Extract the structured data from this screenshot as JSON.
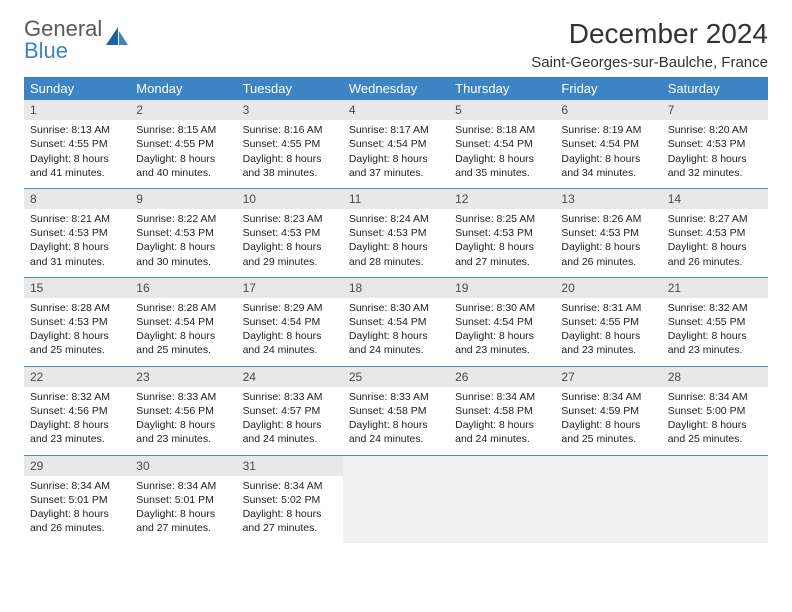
{
  "logo": {
    "line1": "General",
    "line2": "Blue"
  },
  "title": "December 2024",
  "location": "Saint-Georges-sur-Baulche, France",
  "colors": {
    "header_bg": "#3d84c4",
    "header_text": "#ffffff",
    "daynum_bg": "#e8e8e8",
    "row_border": "#5b8ab5",
    "text": "#222222",
    "logo_gray": "#5a5a5a",
    "logo_blue": "#3d84c4"
  },
  "day_headers": [
    "Sunday",
    "Monday",
    "Tuesday",
    "Wednesday",
    "Thursday",
    "Friday",
    "Saturday"
  ],
  "weeks": [
    [
      {
        "n": "1",
        "sr": "Sunrise: 8:13 AM",
        "ss": "Sunset: 4:55 PM",
        "d1": "Daylight: 8 hours",
        "d2": "and 41 minutes."
      },
      {
        "n": "2",
        "sr": "Sunrise: 8:15 AM",
        "ss": "Sunset: 4:55 PM",
        "d1": "Daylight: 8 hours",
        "d2": "and 40 minutes."
      },
      {
        "n": "3",
        "sr": "Sunrise: 8:16 AM",
        "ss": "Sunset: 4:55 PM",
        "d1": "Daylight: 8 hours",
        "d2": "and 38 minutes."
      },
      {
        "n": "4",
        "sr": "Sunrise: 8:17 AM",
        "ss": "Sunset: 4:54 PM",
        "d1": "Daylight: 8 hours",
        "d2": "and 37 minutes."
      },
      {
        "n": "5",
        "sr": "Sunrise: 8:18 AM",
        "ss": "Sunset: 4:54 PM",
        "d1": "Daylight: 8 hours",
        "d2": "and 35 minutes."
      },
      {
        "n": "6",
        "sr": "Sunrise: 8:19 AM",
        "ss": "Sunset: 4:54 PM",
        "d1": "Daylight: 8 hours",
        "d2": "and 34 minutes."
      },
      {
        "n": "7",
        "sr": "Sunrise: 8:20 AM",
        "ss": "Sunset: 4:53 PM",
        "d1": "Daylight: 8 hours",
        "d2": "and 32 minutes."
      }
    ],
    [
      {
        "n": "8",
        "sr": "Sunrise: 8:21 AM",
        "ss": "Sunset: 4:53 PM",
        "d1": "Daylight: 8 hours",
        "d2": "and 31 minutes."
      },
      {
        "n": "9",
        "sr": "Sunrise: 8:22 AM",
        "ss": "Sunset: 4:53 PM",
        "d1": "Daylight: 8 hours",
        "d2": "and 30 minutes."
      },
      {
        "n": "10",
        "sr": "Sunrise: 8:23 AM",
        "ss": "Sunset: 4:53 PM",
        "d1": "Daylight: 8 hours",
        "d2": "and 29 minutes."
      },
      {
        "n": "11",
        "sr": "Sunrise: 8:24 AM",
        "ss": "Sunset: 4:53 PM",
        "d1": "Daylight: 8 hours",
        "d2": "and 28 minutes."
      },
      {
        "n": "12",
        "sr": "Sunrise: 8:25 AM",
        "ss": "Sunset: 4:53 PM",
        "d1": "Daylight: 8 hours",
        "d2": "and 27 minutes."
      },
      {
        "n": "13",
        "sr": "Sunrise: 8:26 AM",
        "ss": "Sunset: 4:53 PM",
        "d1": "Daylight: 8 hours",
        "d2": "and 26 minutes."
      },
      {
        "n": "14",
        "sr": "Sunrise: 8:27 AM",
        "ss": "Sunset: 4:53 PM",
        "d1": "Daylight: 8 hours",
        "d2": "and 26 minutes."
      }
    ],
    [
      {
        "n": "15",
        "sr": "Sunrise: 8:28 AM",
        "ss": "Sunset: 4:53 PM",
        "d1": "Daylight: 8 hours",
        "d2": "and 25 minutes."
      },
      {
        "n": "16",
        "sr": "Sunrise: 8:28 AM",
        "ss": "Sunset: 4:54 PM",
        "d1": "Daylight: 8 hours",
        "d2": "and 25 minutes."
      },
      {
        "n": "17",
        "sr": "Sunrise: 8:29 AM",
        "ss": "Sunset: 4:54 PM",
        "d1": "Daylight: 8 hours",
        "d2": "and 24 minutes."
      },
      {
        "n": "18",
        "sr": "Sunrise: 8:30 AM",
        "ss": "Sunset: 4:54 PM",
        "d1": "Daylight: 8 hours",
        "d2": "and 24 minutes."
      },
      {
        "n": "19",
        "sr": "Sunrise: 8:30 AM",
        "ss": "Sunset: 4:54 PM",
        "d1": "Daylight: 8 hours",
        "d2": "and 23 minutes."
      },
      {
        "n": "20",
        "sr": "Sunrise: 8:31 AM",
        "ss": "Sunset: 4:55 PM",
        "d1": "Daylight: 8 hours",
        "d2": "and 23 minutes."
      },
      {
        "n": "21",
        "sr": "Sunrise: 8:32 AM",
        "ss": "Sunset: 4:55 PM",
        "d1": "Daylight: 8 hours",
        "d2": "and 23 minutes."
      }
    ],
    [
      {
        "n": "22",
        "sr": "Sunrise: 8:32 AM",
        "ss": "Sunset: 4:56 PM",
        "d1": "Daylight: 8 hours",
        "d2": "and 23 minutes."
      },
      {
        "n": "23",
        "sr": "Sunrise: 8:33 AM",
        "ss": "Sunset: 4:56 PM",
        "d1": "Daylight: 8 hours",
        "d2": "and 23 minutes."
      },
      {
        "n": "24",
        "sr": "Sunrise: 8:33 AM",
        "ss": "Sunset: 4:57 PM",
        "d1": "Daylight: 8 hours",
        "d2": "and 24 minutes."
      },
      {
        "n": "25",
        "sr": "Sunrise: 8:33 AM",
        "ss": "Sunset: 4:58 PM",
        "d1": "Daylight: 8 hours",
        "d2": "and 24 minutes."
      },
      {
        "n": "26",
        "sr": "Sunrise: 8:34 AM",
        "ss": "Sunset: 4:58 PM",
        "d1": "Daylight: 8 hours",
        "d2": "and 24 minutes."
      },
      {
        "n": "27",
        "sr": "Sunrise: 8:34 AM",
        "ss": "Sunset: 4:59 PM",
        "d1": "Daylight: 8 hours",
        "d2": "and 25 minutes."
      },
      {
        "n": "28",
        "sr": "Sunrise: 8:34 AM",
        "ss": "Sunset: 5:00 PM",
        "d1": "Daylight: 8 hours",
        "d2": "and 25 minutes."
      }
    ],
    [
      {
        "n": "29",
        "sr": "Sunrise: 8:34 AM",
        "ss": "Sunset: 5:01 PM",
        "d1": "Daylight: 8 hours",
        "d2": "and 26 minutes."
      },
      {
        "n": "30",
        "sr": "Sunrise: 8:34 AM",
        "ss": "Sunset: 5:01 PM",
        "d1": "Daylight: 8 hours",
        "d2": "and 27 minutes."
      },
      {
        "n": "31",
        "sr": "Sunrise: 8:34 AM",
        "ss": "Sunset: 5:02 PM",
        "d1": "Daylight: 8 hours",
        "d2": "and 27 minutes."
      },
      {
        "empty": true
      },
      {
        "empty": true
      },
      {
        "empty": true
      },
      {
        "empty": true
      }
    ]
  ]
}
